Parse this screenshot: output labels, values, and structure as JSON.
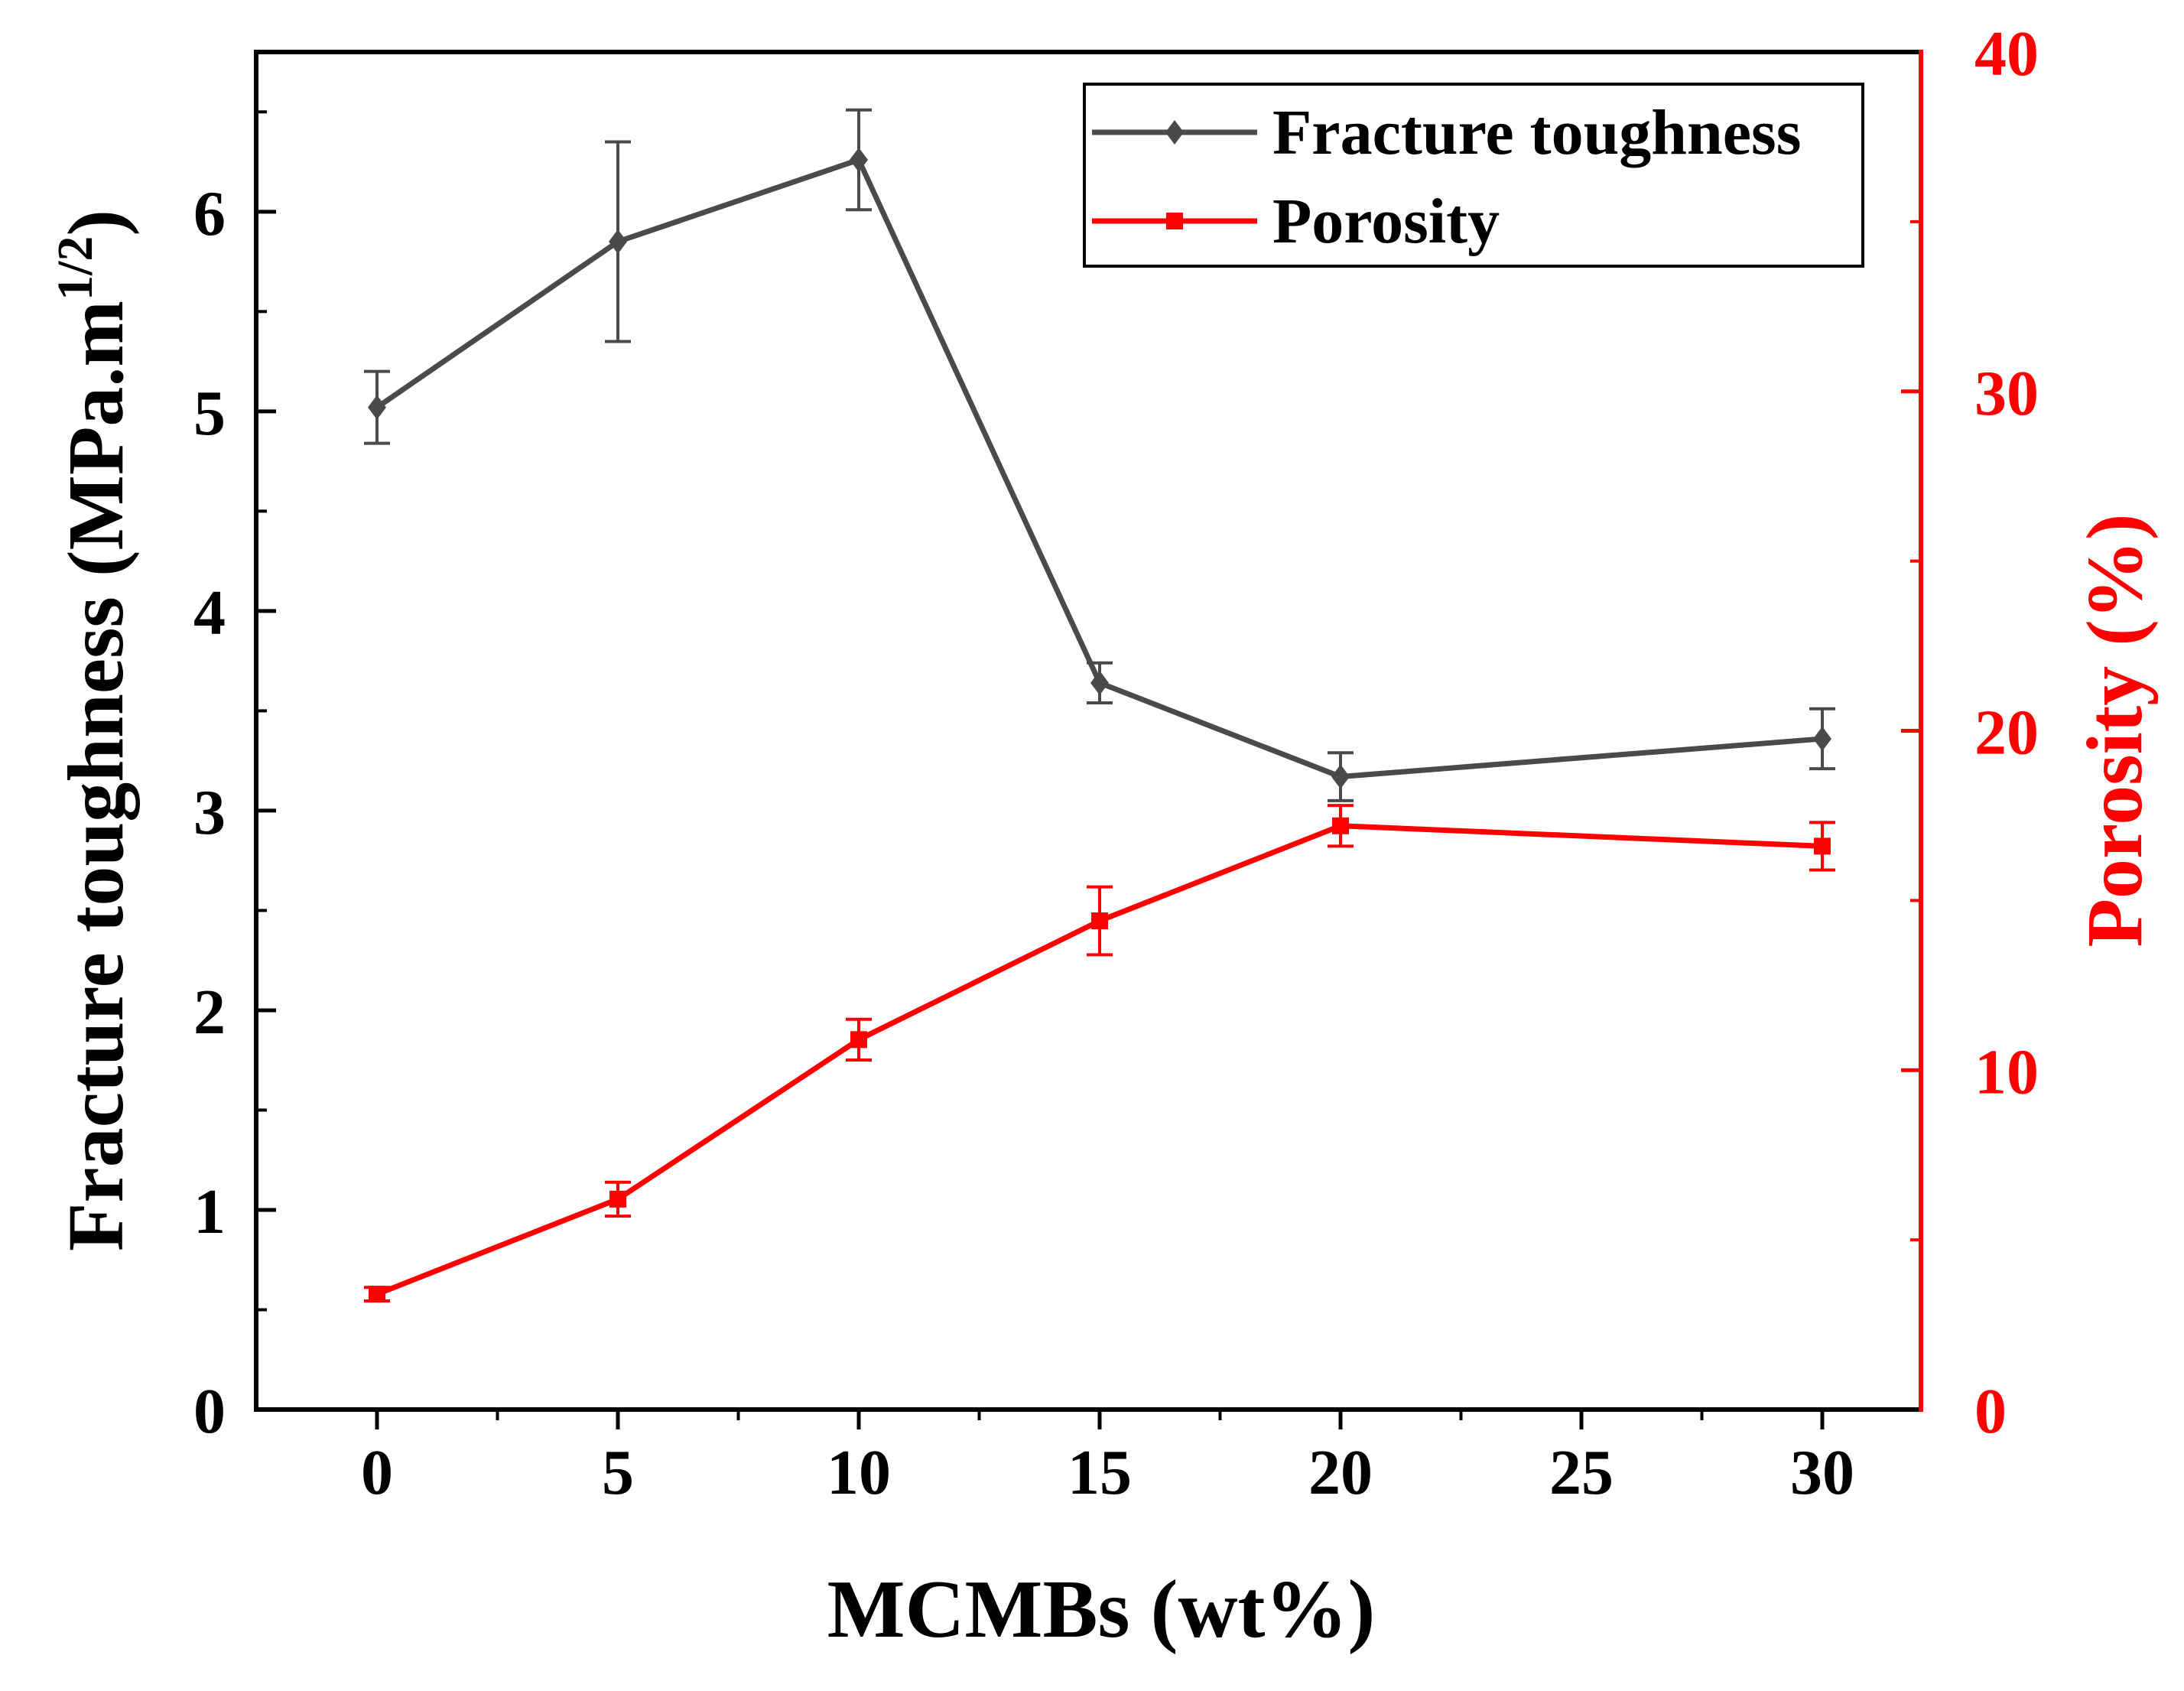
{
  "chart_data": {
    "type": "line",
    "xlabel": "MCMBs (wt%)",
    "ylabel_left": "Fracture toughness (MPa.m",
    "ylabel_left_sup": "1/2",
    "ylabel_left_end": ")",
    "ylabel_right": "Porosity (%)",
    "x_ticks": [
      "0",
      "5",
      "10",
      "15",
      "20",
      "25",
      "30"
    ],
    "x_tick_values": [
      0,
      5,
      10,
      15,
      20,
      25,
      30
    ],
    "x_categories": [
      "0",
      "5",
      "10",
      "15",
      "20",
      "30"
    ],
    "y_left_ticks": [
      "0",
      "1",
      "2",
      "3",
      "4",
      "5",
      "6"
    ],
    "y_left_tick_values": [
      0,
      1,
      2,
      3,
      4,
      5,
      6
    ],
    "y_right_ticks": [
      "0",
      "10",
      "20",
      "30",
      "40"
    ],
    "y_right_tick_values": [
      0,
      10,
      20,
      30,
      40
    ],
    "ylim_left": [
      0,
      6.8
    ],
    "ylim_right": [
      0,
      40
    ],
    "colors": {
      "axis_left": "#000000",
      "axis_right": "#ff0000"
    },
    "legend_position": "top-right",
    "series": [
      {
        "name": "Fracture toughness",
        "axis": "left",
        "color": "#4a4a4a",
        "marker": "diamond",
        "values": [
          5.02,
          5.85,
          6.26,
          3.64,
          3.17,
          3.36
        ],
        "errors": [
          0.18,
          0.5,
          0.25,
          0.1,
          0.12,
          0.15
        ]
      },
      {
        "name": "Porosity",
        "axis": "right",
        "color": "#ff0000",
        "marker": "square",
        "values": [
          3.4,
          6.2,
          10.9,
          14.4,
          17.2,
          16.6
        ],
        "errors": [
          0.2,
          0.5,
          0.6,
          1.0,
          0.6,
          0.7
        ]
      }
    ]
  }
}
